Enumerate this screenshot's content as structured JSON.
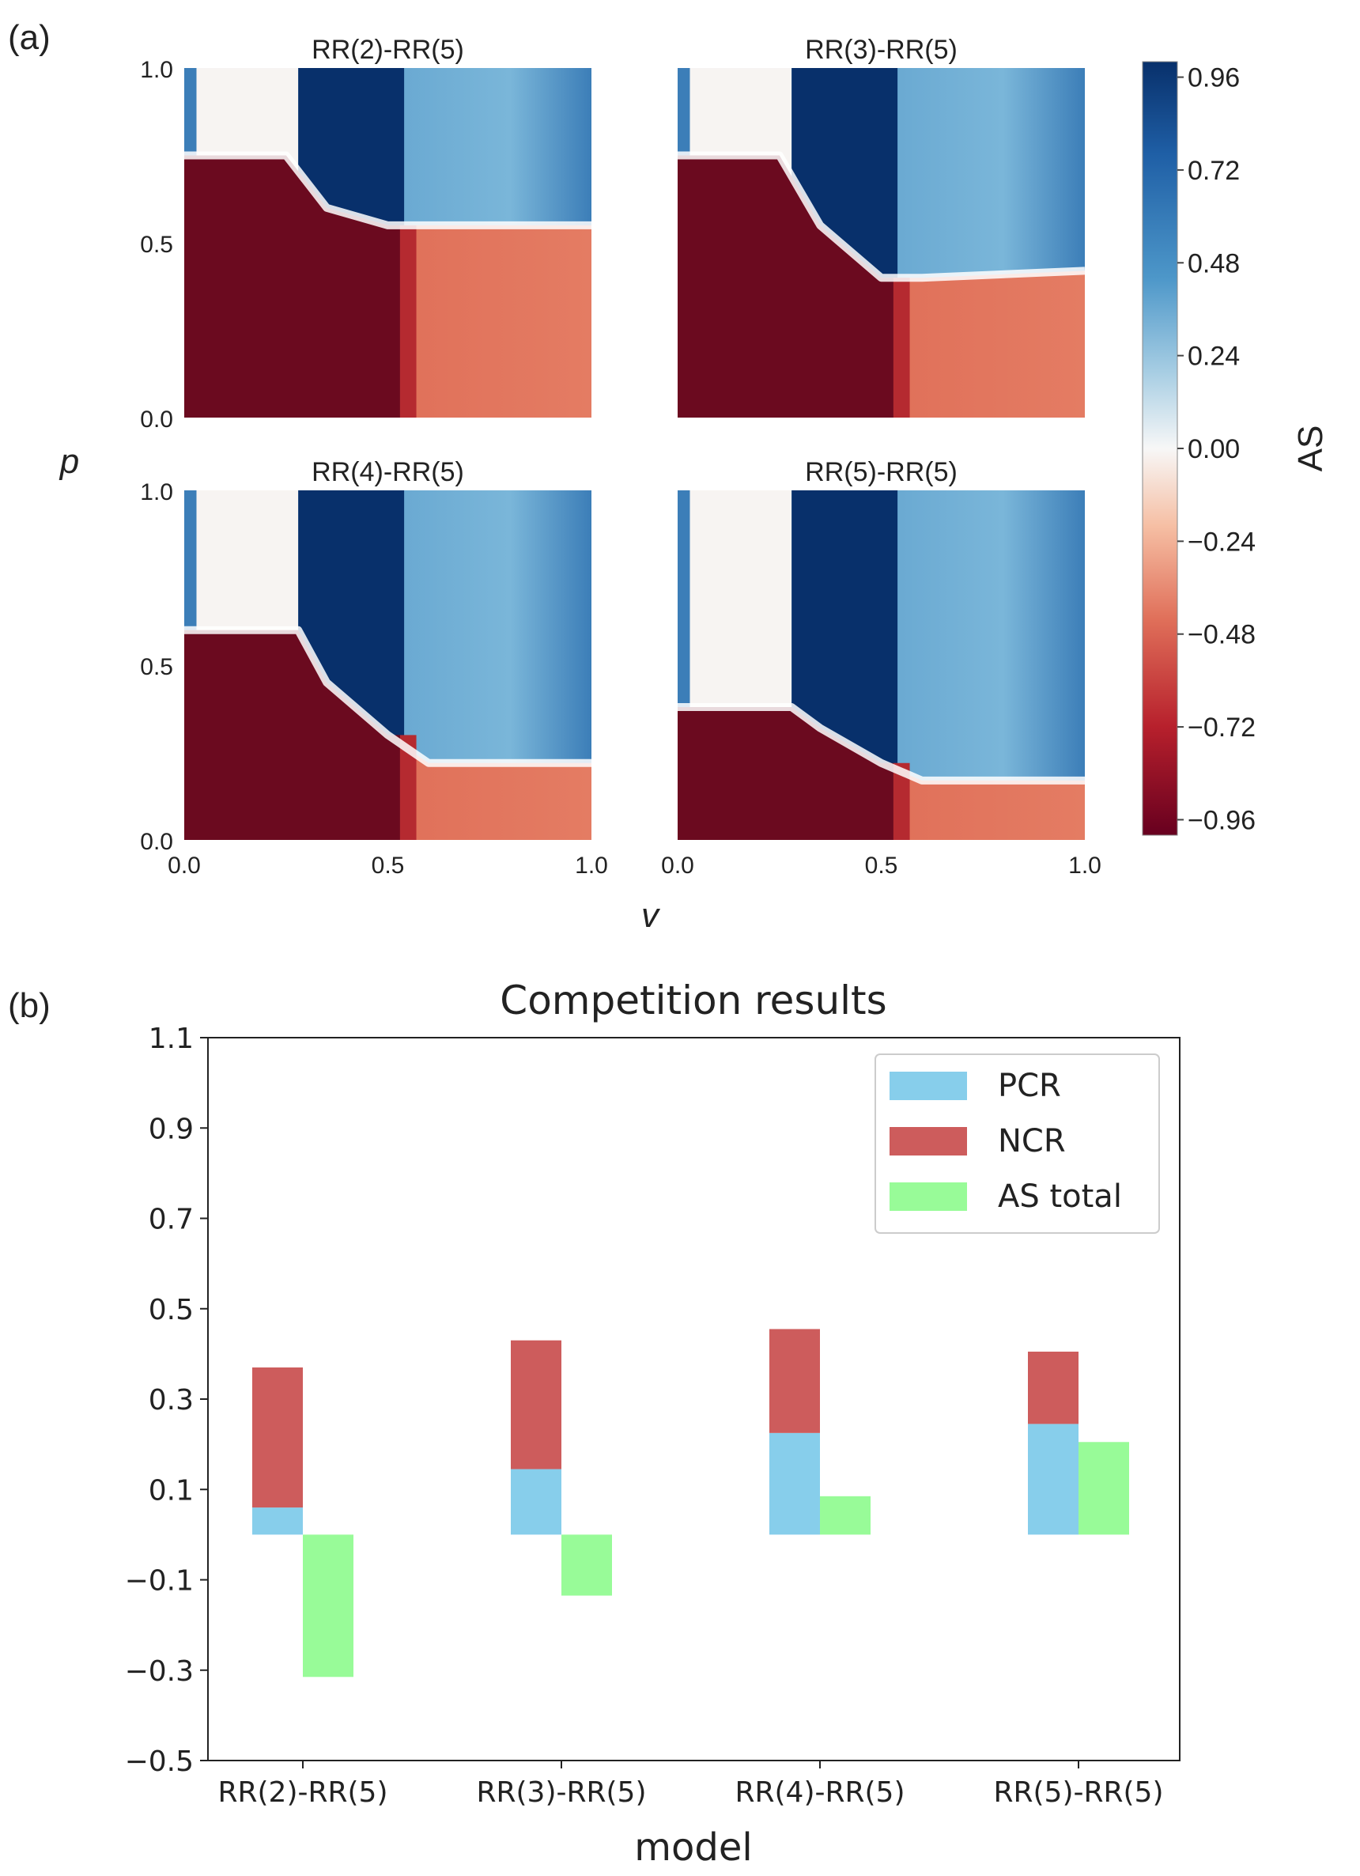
{
  "panel_a": {
    "label": "(a)",
    "ylabel": "p",
    "xlabel": "v",
    "colorbar_label": "AS",
    "colorbar_ticks": [
      "0.96",
      "0.72",
      "0.48",
      "0.24",
      "0.00",
      "−0.24",
      "−0.48",
      "−0.72",
      "−0.96"
    ],
    "x_ticks": [
      "0.0",
      "0.5",
      "1.0"
    ],
    "y_ticks": [
      "1.0",
      "0.5",
      "0.0"
    ],
    "colors": {
      "negative": "#6b0a1f",
      "positive": "#08306b",
      "zero": "#f7f7f7"
    }
  },
  "panel_b": {
    "label": "(b)",
    "legend": [
      {
        "name": "PCR",
        "color": "#87ceeb"
      },
      {
        "name": "NCR",
        "color": "#cd5c5c"
      },
      {
        "name": "AS total",
        "color": "#98fb98"
      }
    ]
  },
  "chart_data": [
    {
      "type": "heatmap",
      "title": "RR(2)-RR(5)",
      "xlabel": "v",
      "ylabel": "p",
      "xlim": [
        0,
        1
      ],
      "ylim": [
        0,
        1
      ],
      "zlim": [
        -0.96,
        0.96
      ],
      "boundary_p": [
        [
          0.0,
          0.75
        ],
        [
          0.25,
          0.75
        ],
        [
          0.35,
          0.6
        ],
        [
          0.5,
          0.55
        ],
        [
          1.0,
          0.55
        ]
      ]
    },
    {
      "type": "heatmap",
      "title": "RR(3)-RR(5)",
      "xlabel": "v",
      "ylabel": "p",
      "xlim": [
        0,
        1
      ],
      "ylim": [
        0,
        1
      ],
      "zlim": [
        -0.96,
        0.96
      ],
      "boundary_p": [
        [
          0.0,
          0.75
        ],
        [
          0.25,
          0.75
        ],
        [
          0.35,
          0.55
        ],
        [
          0.5,
          0.4
        ],
        [
          0.6,
          0.4
        ],
        [
          1.0,
          0.42
        ]
      ]
    },
    {
      "type": "heatmap",
      "title": "RR(4)-RR(5)",
      "xlabel": "v",
      "ylabel": "p",
      "xlim": [
        0,
        1
      ],
      "ylim": [
        0,
        1
      ],
      "zlim": [
        -0.96,
        0.96
      ],
      "boundary_p": [
        [
          0.0,
          0.6
        ],
        [
          0.28,
          0.6
        ],
        [
          0.35,
          0.45
        ],
        [
          0.5,
          0.3
        ],
        [
          0.6,
          0.22
        ],
        [
          1.0,
          0.22
        ]
      ]
    },
    {
      "type": "heatmap",
      "title": "RR(5)-RR(5)",
      "xlabel": "v",
      "ylabel": "p",
      "xlim": [
        0,
        1
      ],
      "ylim": [
        0,
        1
      ],
      "zlim": [
        -0.96,
        0.96
      ],
      "boundary_p": [
        [
          0.0,
          0.38
        ],
        [
          0.28,
          0.38
        ],
        [
          0.35,
          0.32
        ],
        [
          0.5,
          0.22
        ],
        [
          0.6,
          0.17
        ],
        [
          1.0,
          0.17
        ]
      ]
    },
    {
      "type": "bar",
      "title": "Competition results",
      "xlabel": "model",
      "ylabel": "",
      "ylim": [
        -0.5,
        1.1
      ],
      "yticks": [
        1.1,
        0.9,
        0.7,
        0.5,
        0.3,
        0.1,
        -0.1,
        -0.3,
        -0.5
      ],
      "ytick_labels": [
        "1.1",
        "0.9",
        "0.7",
        "0.5",
        "0.3",
        "0.1",
        "−0.1",
        "−0.3",
        "−0.5"
      ],
      "categories": [
        "RR(2)-RR(5)",
        "RR(3)-RR(5)",
        "RR(4)-RR(5)",
        "RR(5)-RR(5)"
      ],
      "series": [
        {
          "name": "PCR",
          "values": [
            0.06,
            0.145,
            0.225,
            0.245
          ]
        },
        {
          "name": "NCR",
          "values": [
            0.31,
            0.285,
            0.23,
            0.16
          ]
        },
        {
          "name": "AS total",
          "values": [
            -0.315,
            -0.135,
            0.085,
            0.205
          ]
        }
      ],
      "legend": "top-right"
    }
  ]
}
